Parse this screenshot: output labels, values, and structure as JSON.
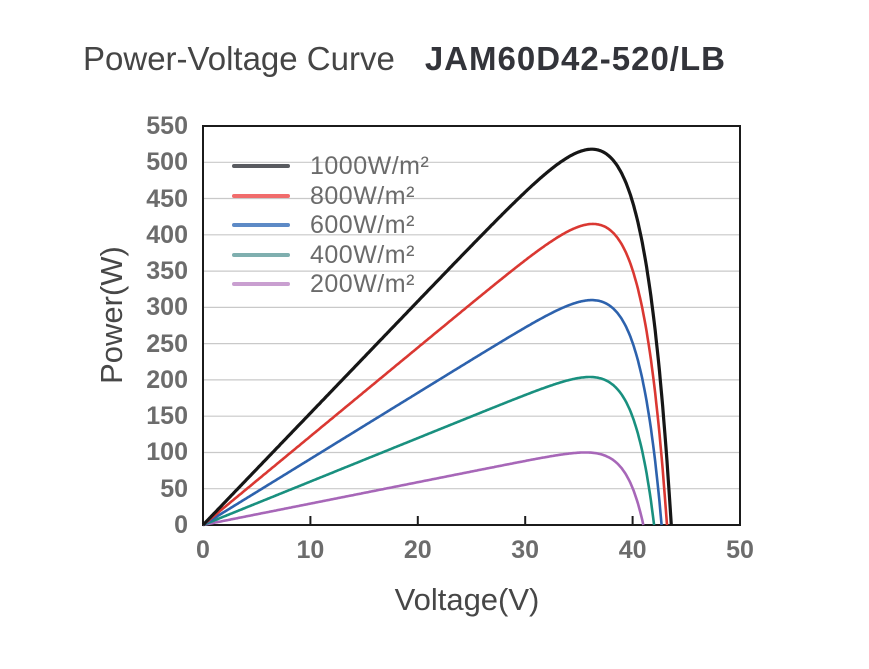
{
  "title": {
    "main": "Power-Voltage Curve",
    "model": "JAM60D42-520/LB"
  },
  "axes": {
    "x": {
      "label": "Voltage(V)",
      "min": 0,
      "max": 50,
      "ticks": [
        0,
        10,
        20,
        30,
        40,
        50
      ]
    },
    "y": {
      "label": "Power(W)",
      "min": 0,
      "max": 550,
      "ticks": [
        0,
        50,
        100,
        150,
        200,
        250,
        300,
        350,
        400,
        450,
        500,
        550
      ]
    }
  },
  "colors": {
    "background": "#ffffff",
    "axis": "#1b1b1b",
    "gridline": "#c9c9c9",
    "title_text": "#454545",
    "model_text": "#33343a",
    "axis_title_text": "#474747",
    "tick_text": "#6c6c6c",
    "legend_text": "#6b6b6b"
  },
  "chart_data": {
    "type": "line",
    "title": "Power-Voltage Curve JAM60D42-520/LB",
    "xlabel": "Voltage(V)",
    "ylabel": "Power(W)",
    "xlim": [
      0,
      50
    ],
    "ylim": [
      0,
      550
    ],
    "grid": "horizontal-only",
    "legend_position": "top-left-inside",
    "series": [
      {
        "name": "1000W/m²",
        "irradiance_wm2": 1000,
        "color": "#161616",
        "legend_color": "#595b60",
        "pmax_w": 518,
        "vmp_v": 36.2,
        "voc_v": 43.6
      },
      {
        "name": "800W/m²",
        "irradiance_wm2": 800,
        "color": "#da3832",
        "legend_color": "#f16c6c",
        "pmax_w": 415,
        "vmp_v": 36.3,
        "voc_v": 43.2
      },
      {
        "name": "600W/m²",
        "irradiance_wm2": 600,
        "color": "#2d62ad",
        "legend_color": "#5d8ac6",
        "pmax_w": 310,
        "vmp_v": 36.2,
        "voc_v": 42.7
      },
      {
        "name": "400W/m²",
        "irradiance_wm2": 400,
        "color": "#19907f",
        "legend_color": "#7fafaf",
        "pmax_w": 204,
        "vmp_v": 36.0,
        "voc_v": 42.0
      },
      {
        "name": "200W/m²",
        "irradiance_wm2": 200,
        "color": "#a767b8",
        "legend_color": "#c99fd0",
        "pmax_w": 100,
        "vmp_v": 35.6,
        "voc_v": 41.0
      }
    ]
  }
}
